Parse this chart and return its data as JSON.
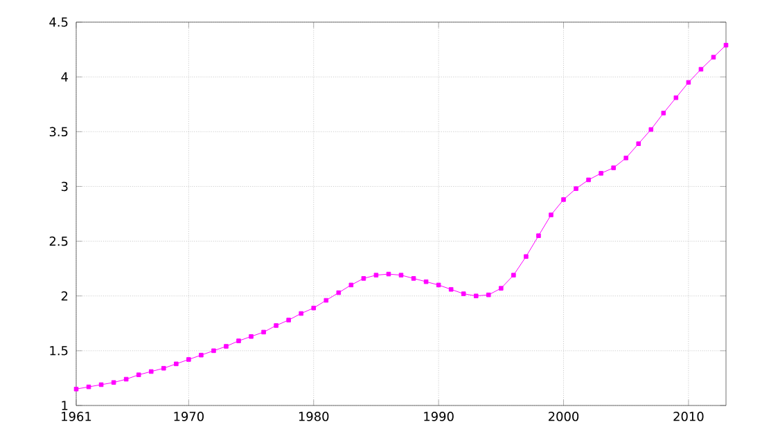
{
  "chart_data": {
    "type": "line",
    "x": [
      1961,
      1962,
      1963,
      1964,
      1965,
      1966,
      1967,
      1968,
      1969,
      1970,
      1971,
      1972,
      1973,
      1974,
      1975,
      1976,
      1977,
      1978,
      1979,
      1980,
      1981,
      1982,
      1983,
      1984,
      1985,
      1986,
      1987,
      1988,
      1989,
      1990,
      1991,
      1992,
      1993,
      1994,
      1995,
      1996,
      1997,
      1998,
      1999,
      2000,
      2001,
      2002,
      2003,
      2004,
      2005,
      2006,
      2007,
      2008,
      2009,
      2010,
      2011,
      2012,
      2013
    ],
    "series": [
      {
        "color": "#ff00ff",
        "values": [
          1.15,
          1.17,
          1.19,
          1.21,
          1.24,
          1.28,
          1.31,
          1.34,
          1.38,
          1.42,
          1.46,
          1.5,
          1.54,
          1.59,
          1.63,
          1.67,
          1.73,
          1.78,
          1.84,
          1.89,
          1.96,
          2.03,
          2.1,
          2.16,
          2.19,
          2.2,
          2.19,
          2.16,
          2.13,
          2.1,
          2.06,
          2.02,
          2.0,
          2.01,
          2.07,
          2.19,
          2.36,
          2.55,
          2.74,
          2.88,
          2.98,
          3.06,
          3.12,
          3.17,
          3.26,
          3.39,
          3.52,
          3.67,
          3.81,
          3.95,
          4.07,
          4.18,
          4.29
        ]
      }
    ],
    "xlim": [
      1961,
      2013
    ],
    "ylim": [
      1,
      4.5
    ],
    "xticks": [
      1961,
      1970,
      1980,
      1990,
      2000,
      2010
    ],
    "yticks": [
      1,
      1.5,
      2,
      2.5,
      3,
      3.5,
      4,
      4.5
    ],
    "grid": true,
    "marker": "square",
    "line_style": "solid"
  }
}
